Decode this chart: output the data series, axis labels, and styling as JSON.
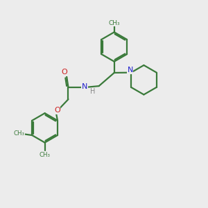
{
  "bg_color": "#ececec",
  "bond_color": "#3a7a3a",
  "N_color": "#2020cc",
  "O_color": "#cc2020",
  "H_color": "#888888",
  "line_width": 1.6,
  "figsize": [
    3.0,
    3.0
  ],
  "dpi": 100,
  "xlim": [
    0,
    10
  ],
  "ylim": [
    0,
    10
  ]
}
